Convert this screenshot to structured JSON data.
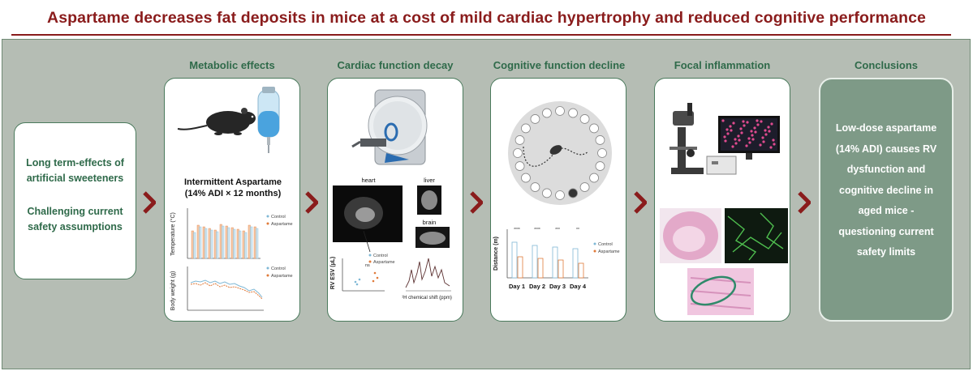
{
  "title": "Aspartame decreases fat deposits in mice at a cost of mild cardiac hypertrophy and reduced cognitive performance",
  "intro": {
    "line1a": "Long term-effects of",
    "line1b": "artificial sweeteners",
    "line2a": "Challenging current",
    "line2b": "safety assumptions"
  },
  "panels": {
    "metabolic": {
      "heading": "Metabolic effects",
      "caption1": "Intermittent Aspartame",
      "caption2": "(14% ADI × 12 months)",
      "temp_ylabel": "Temperature (°C)",
      "bw_ylabel": "Body weight (g)",
      "legend": [
        "Control",
        "Aspartame"
      ]
    },
    "cardiac": {
      "heading": "Cardiac function decay",
      "label_heart": "heart",
      "label_liver": "liver",
      "label_brain": "brain",
      "esv_ylabel": "RV ESV (µL)",
      "legend": [
        "Control",
        "Aspartame"
      ],
      "sig": "ns",
      "xaxis": "¹H chemical shift (ppm)"
    },
    "cognitive": {
      "heading": "Cognitive function decline",
      "ylabel": "Distance (m)",
      "days": [
        "Day 1",
        "Day 2",
        "Day 3",
        "Day 4"
      ],
      "sig": [
        "****",
        "****",
        "***",
        "**"
      ],
      "legend": [
        "Control",
        "Aspartame"
      ]
    },
    "inflammation": {
      "heading": "Focal inflammation"
    }
  },
  "conclusions": {
    "heading": "Conclusions",
    "lines": [
      "Low-dose aspartame",
      "(14% ADI) causes RV",
      "dysfunction and",
      "cognitive decline in",
      "aged mice -",
      "questioning current",
      "safety limits"
    ]
  },
  "colors": {
    "title": "#8a1c1c",
    "heading_green": "#2f6a4a",
    "arrow": "#8a1c1c",
    "control": "#7fb8d6",
    "aspartame": "#e07a3a",
    "conclusion_bg": "#7e9a87"
  }
}
